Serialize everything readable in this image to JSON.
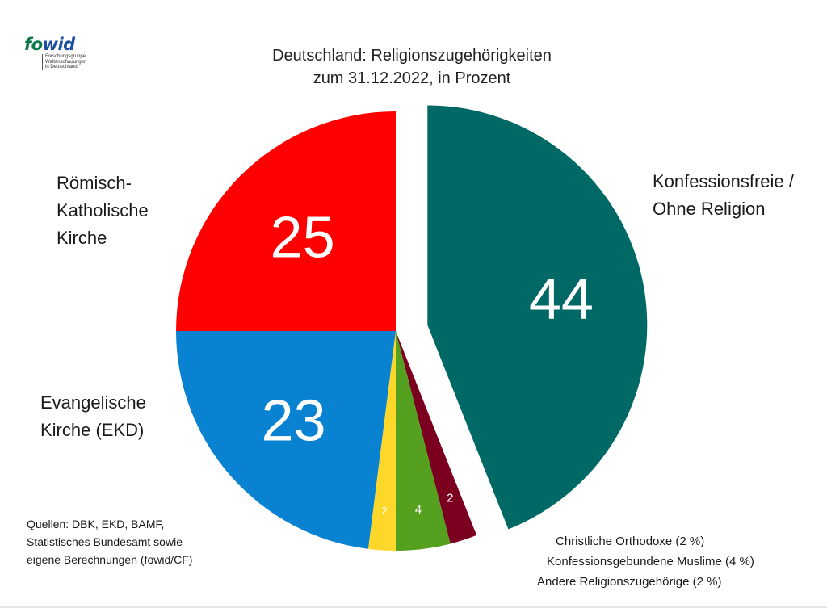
{
  "logo": {
    "mark_fo": "fo",
    "mark_wid": "wid",
    "sub": [
      "Forschungsgruppe",
      "Weltanschauungen",
      "in Deutschland"
    ]
  },
  "chart_data": {
    "type": "pie",
    "title_lines": [
      "Deutschland: Religionszugehörigkeiten",
      "zum 31.12.2022, in Prozent"
    ],
    "slices": [
      {
        "label_lines": [
          "Konfessionsfreie /",
          "Ohne Religion"
        ],
        "value": 44,
        "value_label": "44",
        "color": "#006865",
        "exploded": true
      },
      {
        "label": "Andere Religionszugehörige (2 %)",
        "value": 2,
        "value_label": "2",
        "color": "#7b0020"
      },
      {
        "label": "Konfessionsgebundene Muslime (4 %)",
        "value": 4,
        "value_label": "4",
        "color": "#56a020"
      },
      {
        "label": "Christliche Orthodoxe (2 %)",
        "value": 2,
        "value_label": "2",
        "color": "#fdd72a"
      },
      {
        "label_lines": [
          "Evangelische",
          "Kirche (EKD)"
        ],
        "value": 23,
        "value_label": "23",
        "color": "#0a82d2"
      },
      {
        "label_lines": [
          "Römisch-",
          "Katholische",
          "Kirche"
        ],
        "value": 25,
        "value_label": "25",
        "color": "#ff0000"
      }
    ],
    "start_angle_deg": 0,
    "direction": "clockwise"
  },
  "source_lines": [
    "Quellen: DBK, EKD, BAMF,",
    "Statistisches Bundesamt sowie",
    "eigene Berechnungen (fowid/CF)"
  ]
}
